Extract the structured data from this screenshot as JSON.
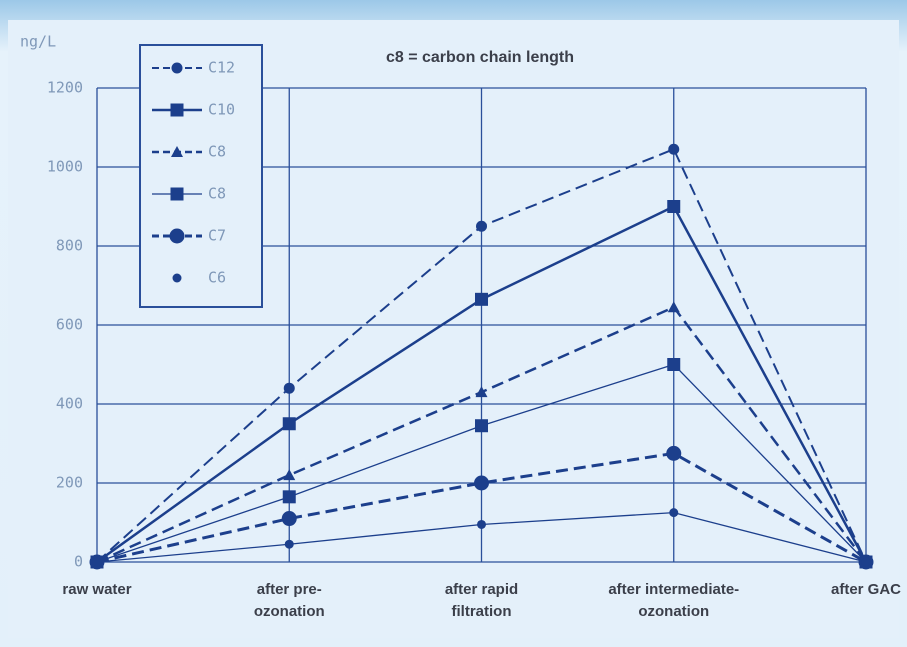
{
  "chart_data": {
    "type": "line",
    "title": "c8 = carbon chain length",
    "y_label": "ng/L",
    "categories": [
      "raw water",
      "after pre-\nozonation",
      "after rapid\nfiltration",
      "after intermediate-\nozonation",
      "after GAC"
    ],
    "ylim": [
      0,
      1200
    ],
    "yticks": [
      0,
      200,
      400,
      600,
      800,
      1000,
      1200
    ],
    "grid": true,
    "legend": "upper left",
    "series": [
      {
        "name": "C12",
        "color": "#1c3f8c",
        "style": "dashed",
        "marker": "circle",
        "width": 2,
        "values": [
          0,
          440,
          850,
          1045,
          0
        ]
      },
      {
        "name": "C10",
        "color": "#1c3f8c",
        "style": "solid",
        "marker": "square",
        "width": 2.5,
        "values": [
          0,
          350,
          665,
          900,
          0
        ]
      },
      {
        "name": "C8",
        "color": "#1c3f8c",
        "style": "dashed",
        "marker": "triangle",
        "width": 2.5,
        "values": [
          0,
          220,
          430,
          645,
          0
        ]
      },
      {
        "name": "C8",
        "color": "#1c3f8c",
        "style": "solid",
        "marker": "square",
        "width": 1.3,
        "values": [
          0,
          165,
          345,
          500,
          0
        ]
      },
      {
        "name": "C7",
        "color": "#1c3f8c",
        "style": "dashed",
        "marker": "bigcircle",
        "width": 3,
        "values": [
          0,
          110,
          200,
          275,
          0
        ]
      },
      {
        "name": "C6",
        "color": "#1c3f8c",
        "style": "solid",
        "marker": "dot",
        "width": 1.3,
        "values": [
          0,
          45,
          95,
          125,
          0
        ]
      }
    ]
  }
}
